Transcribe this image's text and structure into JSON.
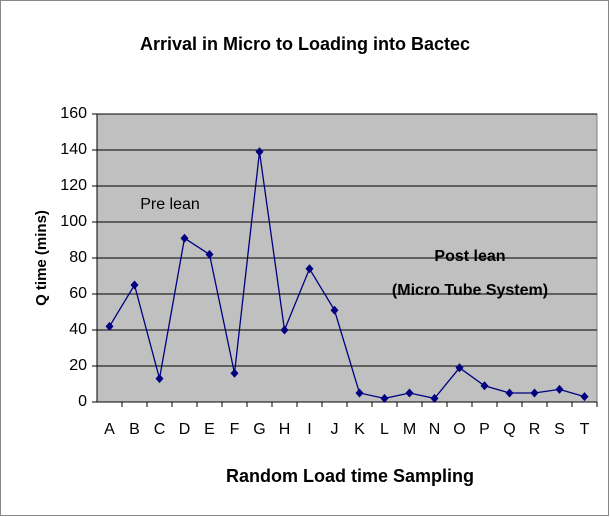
{
  "chart_data": {
    "type": "line",
    "title": "Arrival in Micro to Loading into Bactec",
    "x_label": "Random Load time Sampling",
    "y_label": "Q time (mins)",
    "annotations": [
      "Pre lean",
      "Post lean",
      "(Micro Tube System)"
    ],
    "categories": [
      "A",
      "B",
      "C",
      "D",
      "E",
      "F",
      "G",
      "H",
      "I",
      "J",
      "K",
      "L",
      "M",
      "N",
      "O",
      "P",
      "Q",
      "R",
      "S",
      "T"
    ],
    "series": [
      {
        "color": "#000080",
        "values": [
          42,
          65,
          13,
          91,
          82,
          16,
          139,
          40,
          74,
          51,
          5,
          2,
          5,
          2,
          19,
          9,
          5,
          5,
          7,
          3
        ]
      }
    ],
    "ylim": [
      0,
      160
    ],
    "yticks": [
      0,
      20,
      40,
      60,
      80,
      100,
      120,
      140,
      160
    ],
    "grid": true
  }
}
